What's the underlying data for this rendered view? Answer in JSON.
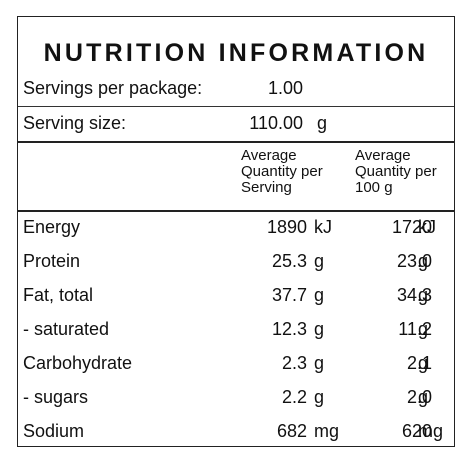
{
  "title": "NUTRITION INFORMATION",
  "servings": {
    "label": "Servings per package:",
    "value": "1.00"
  },
  "serving_size": {
    "label": "Serving size:",
    "value": "110.00",
    "unit": "g"
  },
  "columns": {
    "per_serving": [
      "Average",
      "Quantity per",
      "Serving"
    ],
    "per_100g": [
      "Average",
      "Quantity per",
      "100 g"
    ]
  },
  "nutrients": [
    {
      "name": "Energy",
      "per_serving": "1890",
      "per_serving_unit": "kJ",
      "per_100g": "1720",
      "per_100g_unit": "kJ"
    },
    {
      "name": "Protein",
      "per_serving": "25.3",
      "per_serving_unit": "g",
      "per_100g": "23.0",
      "per_100g_unit": "g"
    },
    {
      "name": "Fat, total",
      "per_serving": "37.7",
      "per_serving_unit": "g",
      "per_100g": "34.3",
      "per_100g_unit": "g"
    },
    {
      "name": "- saturated",
      "per_serving": "12.3",
      "per_serving_unit": "g",
      "per_100g": "11.2",
      "per_100g_unit": "g"
    },
    {
      "name": "Carbohydrate",
      "per_serving": "2.3",
      "per_serving_unit": "g",
      "per_100g": "2.1",
      "per_100g_unit": "g"
    },
    {
      "name": "- sugars",
      "per_serving": "2.2",
      "per_serving_unit": "g",
      "per_100g": "2.0",
      "per_100g_unit": "g"
    },
    {
      "name": "Sodium",
      "per_serving": "682",
      "per_serving_unit": "mg",
      "per_100g": "620",
      "per_100g_unit": "mg"
    }
  ]
}
